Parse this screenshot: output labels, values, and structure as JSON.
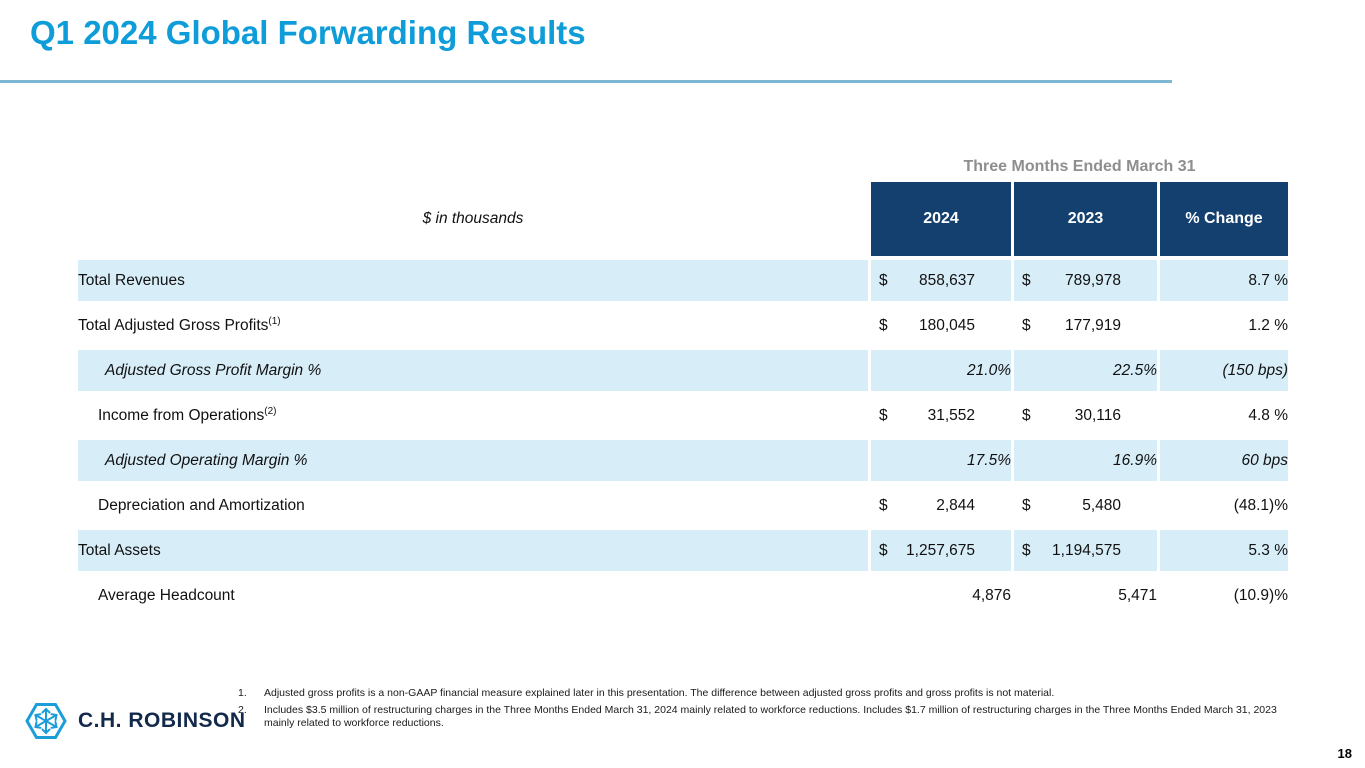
{
  "slide": {
    "title": "Q1 2024 Global Forwarding Results",
    "page_number": "18"
  },
  "logo": {
    "text": "C.H. ROBINSON",
    "icon": "hexagon-arrows-icon"
  },
  "table": {
    "group_header": "Three Months Ended March 31",
    "units_label": "$ in thousands",
    "currency_symbol": "$",
    "columns": [
      "2024",
      "2023",
      "% Change"
    ],
    "rows": [
      {
        "label": "Total Revenues",
        "sup": "",
        "indent": 0,
        "italic": false,
        "dollar": true,
        "v2024": "858,637",
        "v2023": "789,978",
        "change": "8.7 %",
        "shaded": true
      },
      {
        "label": "Total Adjusted Gross Profits",
        "sup": "(1)",
        "indent": 0,
        "italic": false,
        "dollar": true,
        "v2024": "180,045",
        "v2023": "177,919",
        "change": "1.2 %",
        "shaded": false
      },
      {
        "label": "Adjusted Gross Profit Margin %",
        "sup": "",
        "indent": 2,
        "italic": true,
        "dollar": false,
        "v2024": "21.0%",
        "v2023": "22.5%",
        "change": "(150 bps)",
        "shaded": true
      },
      {
        "label": "Income from Operations",
        "sup": "(2)",
        "indent": 1,
        "italic": false,
        "dollar": true,
        "v2024": "31,552",
        "v2023": "30,116",
        "change": "4.8 %",
        "shaded": false
      },
      {
        "label": "Adjusted Operating Margin %",
        "sup": "",
        "indent": 2,
        "italic": true,
        "dollar": false,
        "v2024": "17.5%",
        "v2023": "16.9%",
        "change": "60 bps",
        "shaded": true
      },
      {
        "label": "Depreciation and Amortization",
        "sup": "",
        "indent": 1,
        "italic": false,
        "dollar": true,
        "v2024": "2,844",
        "v2023": "5,480",
        "change": "(48.1)%",
        "shaded": false
      },
      {
        "label": "Total Assets",
        "sup": "",
        "indent": 0,
        "italic": false,
        "dollar": true,
        "v2024": "1,257,675",
        "v2023": "1,194,575",
        "change": "5.3 %",
        "shaded": true
      },
      {
        "label": "Average Headcount",
        "sup": "",
        "indent": 1,
        "italic": false,
        "dollar": false,
        "v2024": "4,876",
        "v2023": "5,471",
        "change": "(10.9)%",
        "shaded": false
      }
    ]
  },
  "footnotes": [
    {
      "num": "1.",
      "text": "Adjusted gross profits is a non-GAAP financial measure explained later in this presentation. The difference between adjusted gross profits and gross profits is not material."
    },
    {
      "num": "2.",
      "text": "Includes $3.5 million of restructuring charges in the Three Months Ended March 31, 2024 mainly related to workforce reductions. Includes $1.7 million of restructuring charges in the Three Months Ended March 31, 2023 mainly related to workforce reductions."
    }
  ],
  "colors": {
    "accent_blue": "#0e9dd8",
    "rule_blue": "#7db8d2",
    "header_navy": "#14406f",
    "row_shade": "#d7edf8",
    "muted_gray": "#8e8e8e",
    "logo_navy": "#13294b"
  }
}
